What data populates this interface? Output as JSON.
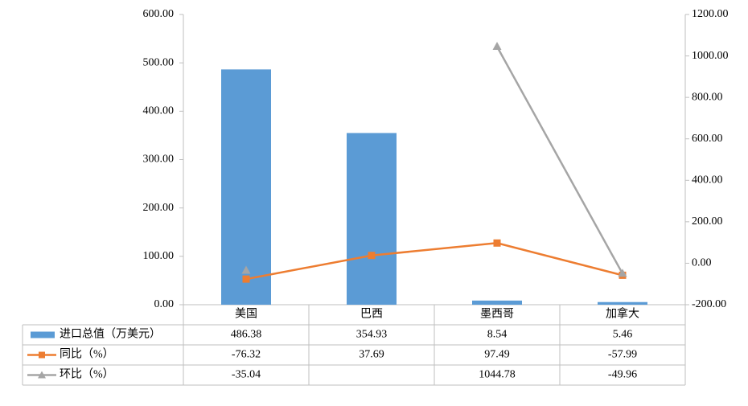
{
  "chart_data": {
    "type": "bar-line-table",
    "categories": [
      "美国",
      "巴西",
      "墨西哥",
      "加拿大"
    ],
    "series": [
      {
        "name": "进口总值（万美元）",
        "type": "bar",
        "color": "#5b9bd5",
        "values": [
          486.38,
          354.93,
          8.54,
          5.46
        ]
      },
      {
        "name": "同比（%）",
        "type": "line",
        "axis": "y2",
        "marker": "square",
        "color": "#ed7d31",
        "values": [
          -76.32,
          37.69,
          97.49,
          -57.99
        ]
      },
      {
        "name": "环比（%）",
        "type": "line",
        "axis": "y2",
        "marker": "triangle",
        "color": "#a5a5a5",
        "values": [
          -35.04,
          null,
          1044.78,
          -49.96
        ]
      }
    ],
    "ylim": [
      0,
      600
    ],
    "yticks": [
      {
        "value": 0,
        "label": "0.00"
      },
      {
        "value": 100,
        "label": "100.00"
      },
      {
        "value": 200,
        "label": "200.00"
      },
      {
        "value": 300,
        "label": "300.00"
      },
      {
        "value": 400,
        "label": "400.00"
      },
      {
        "value": 500,
        "label": "500.00"
      },
      {
        "value": 600,
        "label": "600.00"
      }
    ],
    "y2lim": [
      -200,
      1200
    ],
    "y2ticks": [
      {
        "value": -200,
        "label": "-200.00"
      },
      {
        "value": 0,
        "label": "0.00"
      },
      {
        "value": 200,
        "label": "200.00"
      },
      {
        "value": 400,
        "label": "400.00"
      },
      {
        "value": 600,
        "label": "600.00"
      },
      {
        "value": 800,
        "label": "800.00"
      },
      {
        "value": 1000,
        "label": "1000.00"
      },
      {
        "value": 1200,
        "label": "1200.00"
      }
    ],
    "grid": false
  }
}
